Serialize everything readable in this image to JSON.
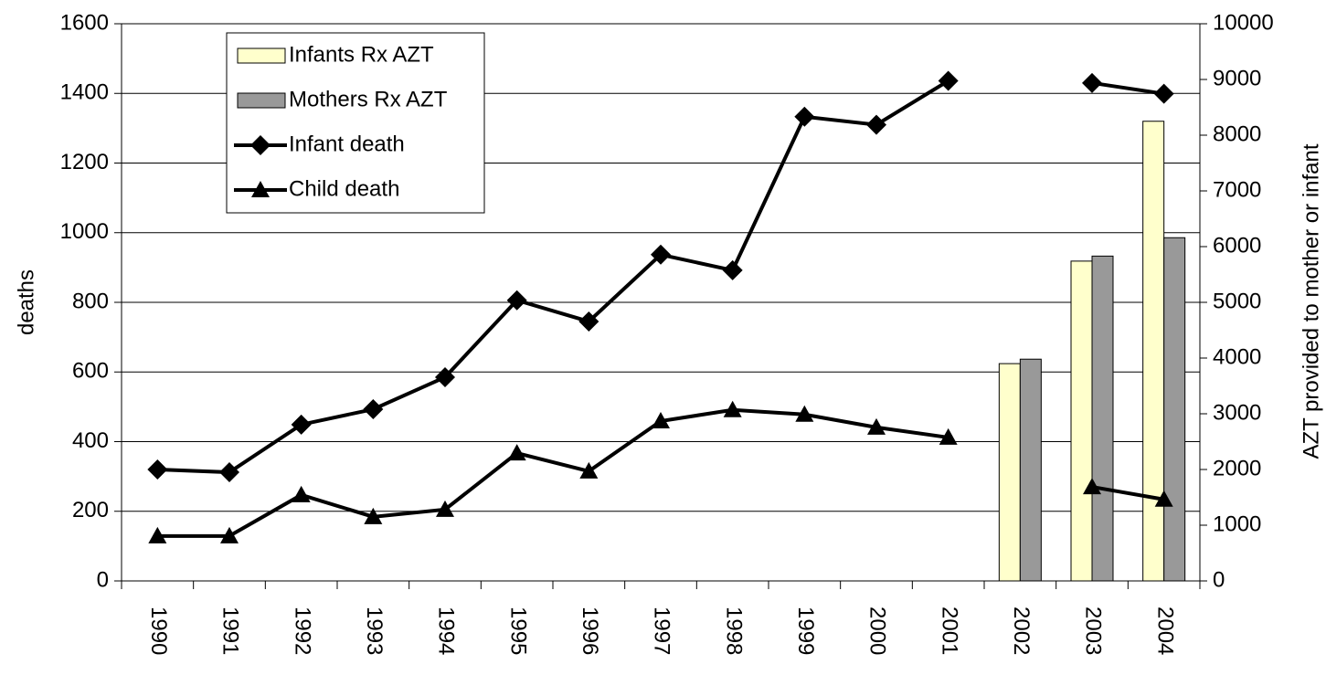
{
  "chart_data": {
    "type": "bar-line",
    "ylabel": "deaths",
    "y2label": "AZT provided to mother or infant",
    "categories": [
      "1990",
      "1991",
      "1992",
      "1993",
      "1994",
      "1995",
      "1996",
      "1997",
      "1998",
      "1999",
      "2000",
      "2001",
      "2002",
      "2003",
      "2004"
    ],
    "series": [
      {
        "name": "Infants Rx AZT",
        "type": "bar",
        "axis": "y2",
        "color": "#ffffcc",
        "values": [
          null,
          null,
          null,
          null,
          null,
          null,
          null,
          null,
          null,
          null,
          null,
          null,
          3900,
          5740,
          8250
        ]
      },
      {
        "name": "Mothers Rx AZT",
        "type": "bar",
        "axis": "y2",
        "color": "#999999",
        "values": [
          null,
          null,
          null,
          null,
          null,
          null,
          null,
          null,
          null,
          null,
          null,
          null,
          3980,
          5830,
          6160
        ]
      },
      {
        "name": "Infant death",
        "type": "line",
        "marker": "diamond",
        "color": "#000000",
        "values": [
          320,
          312,
          449,
          493,
          585,
          806,
          745,
          937,
          892,
          1333,
          1310,
          1436,
          null,
          1430,
          1399
        ]
      },
      {
        "name": "Child death",
        "type": "line",
        "marker": "triangle",
        "color": "#000000",
        "values": [
          129,
          129,
          247,
          184,
          205,
          367,
          315,
          459,
          491,
          478,
          441,
          412,
          null,
          270,
          234
        ]
      }
    ],
    "ylim": [
      0,
      1600
    ],
    "yticks": [
      0,
      200,
      400,
      600,
      800,
      1000,
      1200,
      1400,
      1600
    ],
    "y2lim": [
      0,
      10000
    ],
    "y2ticks": [
      0,
      1000,
      2000,
      3000,
      4000,
      5000,
      6000,
      7000,
      8000,
      9000,
      10000
    ],
    "grid": true,
    "legend": "upper left"
  }
}
